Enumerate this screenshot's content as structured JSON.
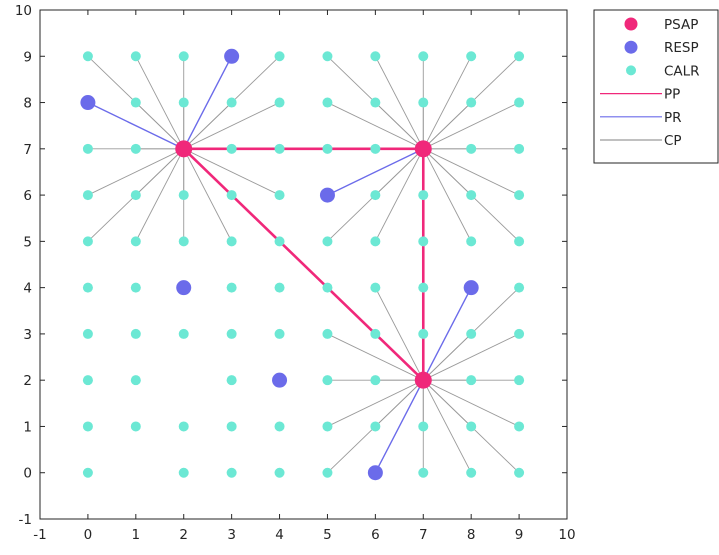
{
  "chart_data": {
    "type": "scatter",
    "title": "",
    "xlabel": "",
    "ylabel": "",
    "xlim": [
      -1,
      10
    ],
    "ylim": [
      -1,
      10
    ],
    "xticks": [
      "-1",
      "0",
      "1",
      "2",
      "3",
      "4",
      "5",
      "6",
      "7",
      "8",
      "9",
      "10"
    ],
    "yticks": [
      "-1",
      "0",
      "1",
      "2",
      "3",
      "4",
      "5",
      "6",
      "7",
      "8",
      "9",
      "10"
    ],
    "grid": false,
    "legend_position": "outside top-right",
    "colors": {
      "PSAP": "#f0287a",
      "RESP": "#6b6bea",
      "CALR": "#6ce8d4",
      "PP": "#f0287a",
      "PR": "#6b6bea",
      "CP": "#9a9a9a"
    },
    "legend": [
      {
        "label": "PSAP",
        "kind": "marker",
        "series": "PSAP"
      },
      {
        "label": "RESP",
        "kind": "marker",
        "series": "RESP"
      },
      {
        "label": "CALR",
        "kind": "marker",
        "series": "CALR"
      },
      {
        "label": "PP",
        "kind": "line",
        "series": "PP"
      },
      {
        "label": "PR",
        "kind": "line",
        "series": "PR"
      },
      {
        "label": "CP",
        "kind": "line",
        "series": "CP"
      }
    ],
    "series": [
      {
        "name": "PSAP",
        "points": [
          [
            2,
            7
          ],
          [
            7,
            7
          ],
          [
            7,
            2
          ]
        ]
      },
      {
        "name": "RESP",
        "points": [
          [
            0,
            8
          ],
          [
            3,
            9
          ],
          [
            5,
            6
          ],
          [
            2,
            4
          ],
          [
            8,
            4
          ],
          [
            4,
            2
          ],
          [
            6,
            0
          ]
        ]
      },
      {
        "name": "CALR",
        "points": [
          [
            0,
            9
          ],
          [
            1,
            9
          ],
          [
            2,
            9
          ],
          [
            4,
            9
          ],
          [
            5,
            9
          ],
          [
            6,
            9
          ],
          [
            7,
            9
          ],
          [
            8,
            9
          ],
          [
            9,
            9
          ],
          [
            1,
            8
          ],
          [
            2,
            8
          ],
          [
            3,
            8
          ],
          [
            4,
            8
          ],
          [
            5,
            8
          ],
          [
            6,
            8
          ],
          [
            7,
            8
          ],
          [
            8,
            8
          ],
          [
            9,
            8
          ],
          [
            0,
            7
          ],
          [
            1,
            7
          ],
          [
            3,
            7
          ],
          [
            4,
            7
          ],
          [
            5,
            7
          ],
          [
            6,
            7
          ],
          [
            8,
            7
          ],
          [
            9,
            7
          ],
          [
            0,
            6
          ],
          [
            1,
            6
          ],
          [
            2,
            6
          ],
          [
            3,
            6
          ],
          [
            4,
            6
          ],
          [
            6,
            6
          ],
          [
            7,
            6
          ],
          [
            8,
            6
          ],
          [
            9,
            6
          ],
          [
            0,
            5
          ],
          [
            1,
            5
          ],
          [
            2,
            5
          ],
          [
            3,
            5
          ],
          [
            4,
            5
          ],
          [
            5,
            5
          ],
          [
            6,
            5
          ],
          [
            7,
            5
          ],
          [
            8,
            5
          ],
          [
            9,
            5
          ],
          [
            0,
            4
          ],
          [
            1,
            4
          ],
          [
            3,
            4
          ],
          [
            4,
            4
          ],
          [
            5,
            4
          ],
          [
            6,
            4
          ],
          [
            7,
            4
          ],
          [
            9,
            4
          ],
          [
            0,
            3
          ],
          [
            1,
            3
          ],
          [
            2,
            3
          ],
          [
            3,
            3
          ],
          [
            4,
            3
          ],
          [
            5,
            3
          ],
          [
            6,
            3
          ],
          [
            7,
            3
          ],
          [
            8,
            3
          ],
          [
            9,
            3
          ],
          [
            0,
            2
          ],
          [
            1,
            2
          ],
          [
            3,
            2
          ],
          [
            5,
            2
          ],
          [
            6,
            2
          ],
          [
            8,
            2
          ],
          [
            9,
            2
          ],
          [
            0,
            1
          ],
          [
            1,
            1
          ],
          [
            2,
            1
          ],
          [
            3,
            1
          ],
          [
            4,
            1
          ],
          [
            5,
            1
          ],
          [
            6,
            1
          ],
          [
            7,
            1
          ],
          [
            8,
            1
          ],
          [
            9,
            1
          ],
          [
            0,
            0
          ],
          [
            2,
            0
          ],
          [
            3,
            0
          ],
          [
            4,
            0
          ],
          [
            5,
            0
          ],
          [
            7,
            0
          ],
          [
            8,
            0
          ],
          [
            9,
            0
          ]
        ]
      }
    ],
    "links": {
      "PP": [
        [
          [
            2,
            7
          ],
          [
            7,
            7
          ]
        ],
        [
          [
            7,
            7
          ],
          [
            7,
            2
          ]
        ],
        [
          [
            2,
            7
          ],
          [
            7,
            2
          ]
        ]
      ],
      "PR": [
        [
          [
            2,
            7
          ],
          [
            0,
            8
          ]
        ],
        [
          [
            2,
            7
          ],
          [
            3,
            9
          ]
        ],
        [
          [
            7,
            7
          ],
          [
            5,
            6
          ]
        ],
        [
          [
            7,
            2
          ],
          [
            8,
            4
          ]
        ],
        [
          [
            7,
            2
          ],
          [
            6,
            0
          ]
        ]
      ],
      "CP": [
        [
          [
            2,
            7
          ],
          [
            0,
            9
          ]
        ],
        [
          [
            2,
            7
          ],
          [
            1,
            9
          ]
        ],
        [
          [
            2,
            7
          ],
          [
            2,
            9
          ]
        ],
        [
          [
            2,
            7
          ],
          [
            4,
            9
          ]
        ],
        [
          [
            2,
            7
          ],
          [
            1,
            8
          ]
        ],
        [
          [
            2,
            7
          ],
          [
            2,
            8
          ]
        ],
        [
          [
            2,
            7
          ],
          [
            3,
            8
          ]
        ],
        [
          [
            2,
            7
          ],
          [
            4,
            8
          ]
        ],
        [
          [
            2,
            7
          ],
          [
            0,
            7
          ]
        ],
        [
          [
            2,
            7
          ],
          [
            1,
            7
          ]
        ],
        [
          [
            2,
            7
          ],
          [
            3,
            7
          ]
        ],
        [
          [
            2,
            7
          ],
          [
            4,
            7
          ]
        ],
        [
          [
            2,
            7
          ],
          [
            0,
            6
          ]
        ],
        [
          [
            2,
            7
          ],
          [
            1,
            6
          ]
        ],
        [
          [
            2,
            7
          ],
          [
            2,
            6
          ]
        ],
        [
          [
            2,
            7
          ],
          [
            3,
            6
          ]
        ],
        [
          [
            2,
            7
          ],
          [
            4,
            6
          ]
        ],
        [
          [
            2,
            7
          ],
          [
            0,
            5
          ]
        ],
        [
          [
            2,
            7
          ],
          [
            1,
            5
          ]
        ],
        [
          [
            2,
            7
          ],
          [
            2,
            5
          ]
        ],
        [
          [
            2,
            7
          ],
          [
            3,
            5
          ]
        ],
        [
          [
            7,
            7
          ],
          [
            5,
            9
          ]
        ],
        [
          [
            7,
            7
          ],
          [
            6,
            9
          ]
        ],
        [
          [
            7,
            7
          ],
          [
            7,
            9
          ]
        ],
        [
          [
            7,
            7
          ],
          [
            8,
            9
          ]
        ],
        [
          [
            7,
            7
          ],
          [
            9,
            9
          ]
        ],
        [
          [
            7,
            7
          ],
          [
            5,
            8
          ]
        ],
        [
          [
            7,
            7
          ],
          [
            6,
            8
          ]
        ],
        [
          [
            7,
            7
          ],
          [
            7,
            8
          ]
        ],
        [
          [
            7,
            7
          ],
          [
            8,
            8
          ]
        ],
        [
          [
            7,
            7
          ],
          [
            9,
            8
          ]
        ],
        [
          [
            7,
            7
          ],
          [
            8,
            7
          ]
        ],
        [
          [
            7,
            7
          ],
          [
            9,
            7
          ]
        ],
        [
          [
            7,
            7
          ],
          [
            6,
            6
          ]
        ],
        [
          [
            7,
            7
          ],
          [
            7,
            6
          ]
        ],
        [
          [
            7,
            7
          ],
          [
            8,
            6
          ]
        ],
        [
          [
            7,
            7
          ],
          [
            9,
            6
          ]
        ],
        [
          [
            7,
            7
          ],
          [
            5,
            5
          ]
        ],
        [
          [
            7,
            7
          ],
          [
            6,
            5
          ]
        ],
        [
          [
            7,
            7
          ],
          [
            7,
            5
          ]
        ],
        [
          [
            7,
            7
          ],
          [
            8,
            5
          ]
        ],
        [
          [
            7,
            7
          ],
          [
            9,
            5
          ]
        ],
        [
          [
            7,
            2
          ],
          [
            6,
            4
          ]
        ],
        [
          [
            7,
            2
          ],
          [
            7,
            4
          ]
        ],
        [
          [
            7,
            2
          ],
          [
            9,
            4
          ]
        ],
        [
          [
            7,
            2
          ],
          [
            5,
            3
          ]
        ],
        [
          [
            7,
            2
          ],
          [
            6,
            3
          ]
        ],
        [
          [
            7,
            2
          ],
          [
            7,
            3
          ]
        ],
        [
          [
            7,
            2
          ],
          [
            8,
            3
          ]
        ],
        [
          [
            7,
            2
          ],
          [
            9,
            3
          ]
        ],
        [
          [
            7,
            2
          ],
          [
            5,
            2
          ]
        ],
        [
          [
            7,
            2
          ],
          [
            6,
            2
          ]
        ],
        [
          [
            7,
            2
          ],
          [
            8,
            2
          ]
        ],
        [
          [
            7,
            2
          ],
          [
            9,
            2
          ]
        ],
        [
          [
            7,
            2
          ],
          [
            5,
            1
          ]
        ],
        [
          [
            7,
            2
          ],
          [
            6,
            1
          ]
        ],
        [
          [
            7,
            2
          ],
          [
            7,
            1
          ]
        ],
        [
          [
            7,
            2
          ],
          [
            8,
            1
          ]
        ],
        [
          [
            7,
            2
          ],
          [
            9,
            1
          ]
        ],
        [
          [
            7,
            2
          ],
          [
            5,
            0
          ]
        ],
        [
          [
            7,
            2
          ],
          [
            7,
            0
          ]
        ],
        [
          [
            7,
            2
          ],
          [
            8,
            0
          ]
        ],
        [
          [
            7,
            2
          ],
          [
            9,
            0
          ]
        ]
      ]
    }
  }
}
